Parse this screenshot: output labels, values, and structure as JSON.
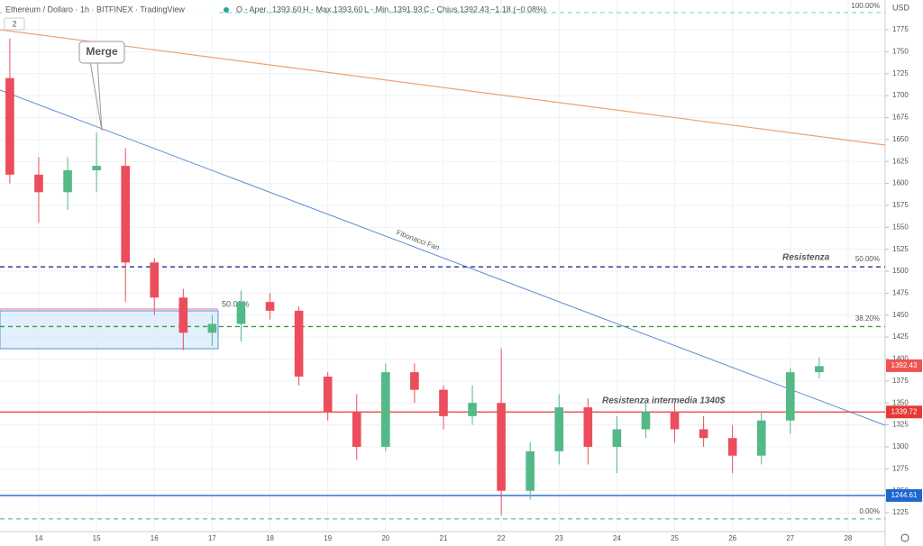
{
  "header": {
    "symbol": "Ethereum / Dollaro · 1h · BITFINEX · TradingView",
    "open_label": "O - Aper.",
    "open": "1393.60",
    "high_label": "H - Max.",
    "high": "1393.60",
    "low_label": "L - Min.",
    "low": "1391.93",
    "close_label": "C - Chius.",
    "close": "1392.43",
    "change": "−1.18 (−0.08%)",
    "indicator_count": "2",
    "currency": "USD"
  },
  "notes": {
    "merge": "Merge",
    "fan": "Fibonacci Fan",
    "resistance": "Resistenza",
    "mid_resistance": "Resistenza  intermedia 1340$",
    "fib_50": "50.00%",
    "fib_382": "38.20%",
    "fib_0": "0.00%",
    "fib_100": "100.00%",
    "box_50": "50.00%"
  },
  "chart_data": {
    "type": "candlestick",
    "up_color": "#53b987",
    "down_color": "#eb4d5c",
    "x": [
      13.5,
      14,
      14.5,
      15,
      15.5,
      16,
      16.5,
      17,
      17.5,
      18,
      18.5,
      19,
      19.5,
      20,
      20.5,
      21,
      21.5,
      22,
      22.5,
      23,
      23.5,
      24,
      24.5,
      25,
      25.5,
      26,
      26.5,
      27,
      27.5
    ],
    "open": [
      1720,
      1610,
      1590,
      1615,
      1620,
      1510,
      1470,
      1430,
      1440,
      1465,
      1455,
      1380,
      1340,
      1300,
      1385,
      1365,
      1335,
      1350,
      1250,
      1295,
      1345,
      1300,
      1320,
      1340,
      1320,
      1310,
      1290,
      1330,
      1385
    ],
    "high": [
      1765,
      1630,
      1630,
      1658,
      1640,
      1515,
      1480,
      1450,
      1478,
      1475,
      1460,
      1385,
      1360,
      1395,
      1395,
      1370,
      1370,
      1412,
      1305,
      1360,
      1355,
      1335,
      1350,
      1350,
      1335,
      1325,
      1340,
      1390,
      1402
    ],
    "low": [
      1600,
      1555,
      1570,
      1590,
      1465,
      1450,
      1410,
      1415,
      1420,
      1445,
      1370,
      1330,
      1285,
      1295,
      1350,
      1320,
      1325,
      1222,
      1240,
      1280,
      1280,
      1270,
      1310,
      1305,
      1300,
      1270,
      1280,
      1315,
      1378
    ],
    "close": [
      1610,
      1590,
      1615,
      1620,
      1510,
      1470,
      1430,
      1440,
      1465,
      1455,
      1380,
      1340,
      1300,
      1385,
      1365,
      1335,
      1350,
      1250,
      1295,
      1345,
      1300,
      1320,
      1340,
      1320,
      1310,
      1290,
      1330,
      1385,
      1392
    ],
    "xlim": [
      13.33,
      28.64
    ],
    "xticks": [
      14,
      15,
      16,
      17,
      18,
      19,
      20,
      21,
      22,
      23,
      24,
      25,
      26,
      27,
      28
    ],
    "ylim": [
      1203.5,
      1808.9
    ],
    "yticks": [
      1225,
      1250,
      1275,
      1300,
      1325,
      1350,
      1375,
      1400,
      1425,
      1450,
      1475,
      1500,
      1525,
      1550,
      1575,
      1600,
      1625,
      1650,
      1675,
      1700,
      1725,
      1750,
      1775
    ],
    "grid": true,
    "levels": [
      {
        "value": 1794.5,
        "color": "#8fd3d3",
        "dashed": true
      },
      {
        "value": 1505,
        "color": "#2a2f8f",
        "dashed": true
      },
      {
        "value": 1437,
        "color": "#3d9a3d",
        "dashed": true
      },
      {
        "value": 1339.72,
        "color": "#e53935",
        "dashed": false
      },
      {
        "value": 1244.61,
        "color": "#1e66d0",
        "dashed": false
      },
      {
        "value": 1218,
        "color": "#4fc3c3",
        "dashed": true
      }
    ],
    "price_tags": [
      {
        "value": 1392.43,
        "color": "#ef5350"
      },
      {
        "value": 1339.72,
        "color": "#e53935"
      },
      {
        "value": 1244.61,
        "color": "#1e66d0"
      }
    ]
  }
}
